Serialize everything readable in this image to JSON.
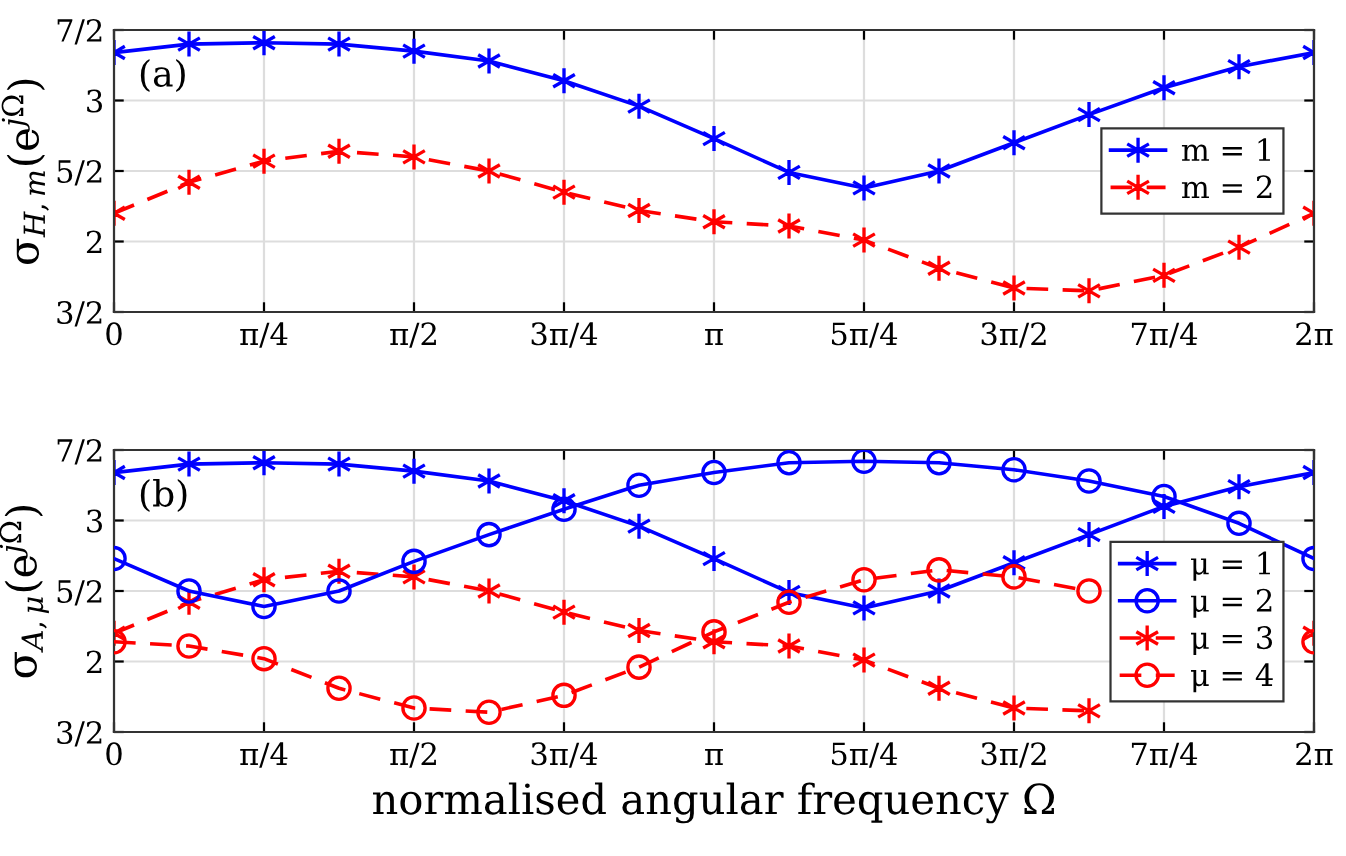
{
  "chart_data": [
    {
      "type": "line",
      "annotations": [
        "(a)"
      ],
      "ylabel": "σ$_{H,m}$(e$^{jΩ}$)",
      "x": [
        0,
        0.3927,
        0.7854,
        1.1781,
        1.5708,
        1.9635,
        2.3562,
        2.7489,
        3.1416,
        3.5343,
        3.927,
        4.3197,
        4.7124,
        5.1051,
        5.4978,
        5.8905,
        6.2832
      ],
      "series": [
        {
          "name": "m = 1",
          "color": "#0000ff",
          "marker": "cross",
          "line_style": "solid",
          "values": [
            3.34,
            3.4,
            3.41,
            3.4,
            3.35,
            3.28,
            3.14,
            2.96,
            2.73,
            2.49,
            2.38,
            2.5,
            2.7,
            2.9,
            3.09,
            3.24,
            3.34
          ]
        },
        {
          "name": "m = 2",
          "color": "#ff0000",
          "marker": "cross",
          "line_style": "dashed",
          "values": [
            2.2,
            2.42,
            2.57,
            2.64,
            2.6,
            2.5,
            2.35,
            2.22,
            2.14,
            2.11,
            2.01,
            1.81,
            1.67,
            1.65,
            1.76,
            1.96,
            2.2
          ]
        }
      ],
      "xlim": [
        0,
        6.2832
      ],
      "xticks": [
        0,
        {
          "value": 0.7854,
          "label": "π/4"
        },
        {
          "value": 1.5708,
          "label": "π/2"
        },
        {
          "value": 2.3562,
          "label": "3π/4"
        },
        {
          "value": 3.1416,
          "label": "π"
        },
        {
          "value": 3.927,
          "label": "5π/4"
        },
        {
          "value": 4.7124,
          "label": "3π/2"
        },
        {
          "value": 5.4978,
          "label": "7π/4"
        },
        {
          "value": 6.2832,
          "label": "2π"
        }
      ],
      "ylim": [
        1.5,
        3.5
      ],
      "yticks": [
        {
          "value": 1.5,
          "label": "3/2"
        },
        2,
        {
          "value": 2.5,
          "label": "5/2"
        },
        3,
        {
          "value": 3.5,
          "label": "7/2"
        }
      ],
      "grid": true,
      "legend": "right"
    },
    {
      "type": "line",
      "annotations": [
        "(b)"
      ],
      "ylabel": "σ$_{A,μ}$(e$^{jΩ}$)",
      "xlabel": "normalised angular frequency Ω",
      "x": [
        0,
        0.3927,
        0.7854,
        1.1781,
        1.5708,
        1.9635,
        2.3562,
        2.7489,
        3.1416,
        3.5343,
        3.927,
        4.3197,
        4.7124,
        5.1051,
        5.4978,
        5.8905,
        6.2832
      ],
      "series": [
        {
          "name": "μ = 1",
          "color": "#0000ff",
          "marker": "cross",
          "line_style": "solid",
          "values": [
            3.34,
            3.4,
            3.41,
            3.4,
            3.35,
            3.28,
            3.14,
            2.96,
            2.73,
            2.49,
            2.38,
            2.5,
            2.7,
            2.9,
            3.1,
            3.24,
            3.34
          ]
        },
        {
          "name": "μ = 2",
          "color": "#0000ff",
          "marker": "circle",
          "line_style": "solid",
          "values": [
            2.73,
            2.5,
            2.39,
            2.5,
            2.71,
            2.9,
            3.08,
            3.25,
            3.34,
            3.41,
            3.42,
            3.41,
            3.36,
            3.28,
            3.17,
            2.98,
            2.73
          ]
        },
        {
          "name": "μ = 3",
          "color": "#ff0000",
          "marker": "cross",
          "line_style": "dashed",
          "values": [
            2.2,
            2.42,
            2.58,
            2.64,
            2.6,
            2.5,
            2.35,
            2.22,
            2.14,
            2.11,
            2.01,
            1.81,
            1.67,
            1.65,
            null,
            null,
            2.2
          ]
        },
        {
          "name": "μ = 4",
          "color": "#ff0000",
          "marker": "circle",
          "line_style": "dashed",
          "values": [
            2.14,
            2.11,
            2.02,
            1.81,
            1.67,
            1.64,
            1.76,
            1.96,
            2.21,
            2.42,
            2.58,
            2.65,
            2.6,
            2.5,
            null,
            null,
            2.14
          ]
        }
      ],
      "xlim": [
        0,
        6.2832
      ],
      "xticks": [
        0,
        {
          "value": 0.7854,
          "label": "π/4"
        },
        {
          "value": 1.5708,
          "label": "π/2"
        },
        {
          "value": 2.3562,
          "label": "3π/4"
        },
        {
          "value": 3.1416,
          "label": "π"
        },
        {
          "value": 3.927,
          "label": "5π/4"
        },
        {
          "value": 4.7124,
          "label": "3π/2"
        },
        {
          "value": 5.4978,
          "label": "7π/4"
        },
        {
          "value": 6.2832,
          "label": "2π"
        }
      ],
      "ylim": [
        1.5,
        3.5
      ],
      "yticks": [
        {
          "value": 1.5,
          "label": "3/2"
        },
        2,
        {
          "value": 2.5,
          "label": "5/2"
        },
        3,
        {
          "value": 3.5,
          "label": "7/2"
        }
      ],
      "grid": true,
      "legend": "lower right"
    }
  ]
}
